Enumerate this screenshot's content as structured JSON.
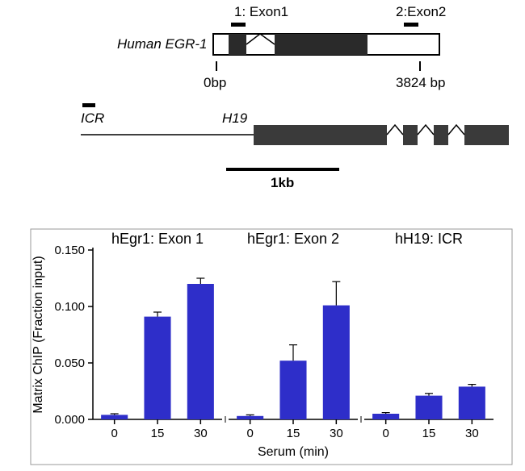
{
  "gene_diagram": {
    "egr1": {
      "label": "Human EGR-1",
      "probe1_label": "1: Exon1",
      "probe2_label": "2:Exon2",
      "start_label": "0bp",
      "end_label": "3824 bp",
      "box_outline": "#000000",
      "exon_fill": "#2a2a2a",
      "background": "#ffffff"
    },
    "h19": {
      "icr_label": "ICR",
      "h19_label": "H19",
      "exon_fill": "#3a3a3a",
      "line_color": "#000000"
    },
    "scale": {
      "label": "1kb",
      "color": "#000000"
    }
  },
  "chart": {
    "y_axis_label": "Matrix ChIP (Fraction input)",
    "x_axis_label": "Serum (min)",
    "ylim": [
      0,
      0.15
    ],
    "yticks": [
      0.0,
      0.05,
      0.1,
      0.15
    ],
    "ytick_labels": [
      "0.000",
      "0.050",
      "0.100",
      "0.150"
    ],
    "categories": [
      "0",
      "15",
      "30"
    ],
    "bar_color": "#2e2ec9",
    "error_color": "#000000",
    "axis_color": "#000000",
    "panels": [
      {
        "title": "hEgr1: Exon 1",
        "values": [
          0.004,
          0.091,
          0.12
        ],
        "errors": [
          0.001,
          0.004,
          0.005
        ]
      },
      {
        "title": "hEgr1: Exon 2",
        "values": [
          0.003,
          0.052,
          0.101
        ],
        "errors": [
          0.001,
          0.014,
          0.021
        ]
      },
      {
        "title": "hH19: ICR",
        "values": [
          0.005,
          0.021,
          0.029
        ],
        "errors": [
          0.001,
          0.002,
          0.002
        ]
      }
    ],
    "title_fontsize": 18,
    "axis_label_fontsize": 16,
    "tick_fontsize": 15
  }
}
